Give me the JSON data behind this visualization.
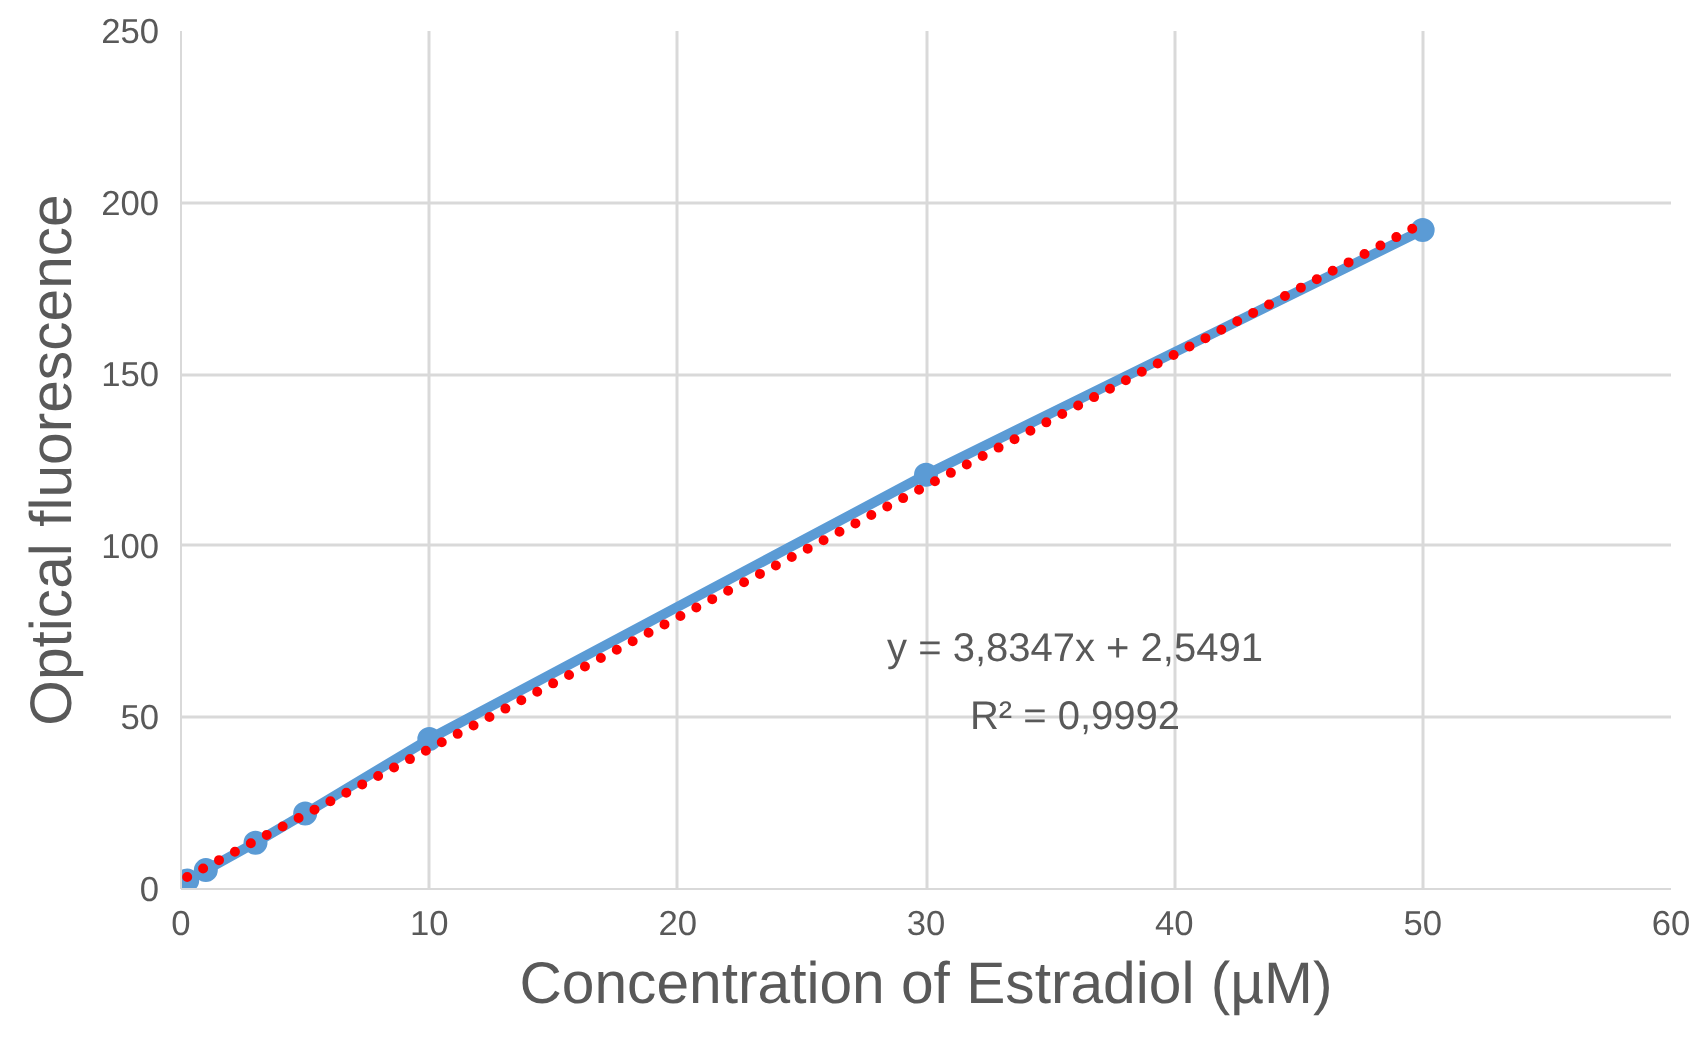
{
  "chart_data": {
    "type": "line",
    "xlabel": "Concentration of Estradiol (µM)",
    "ylabel": "Optical fluorescence",
    "series": [
      {
        "color": "#5b9bd5",
        "marker": "circle",
        "line_style": "solid",
        "x": [
          0.25,
          1,
          3,
          5,
          10,
          30,
          50
        ],
        "values": [
          2.5,
          5.5,
          13.5,
          22,
          43.7,
          120.7,
          192
        ]
      },
      {
        "color": "#ff0000",
        "marker": "none",
        "line_style": "dotted",
        "x": [
          0.25,
          50
        ],
        "values": [
          3.5,
          194
        ]
      }
    ],
    "xlim": [
      0,
      60
    ],
    "xticks": [
      0,
      10,
      20,
      30,
      40,
      50,
      60
    ],
    "ylim": [
      0,
      250
    ],
    "yticks": [
      0,
      50,
      100,
      150,
      200,
      250
    ],
    "grid": true,
    "annotations": [
      "y = 3,8347x + 2,5491",
      "R² = 0,9992"
    ]
  }
}
